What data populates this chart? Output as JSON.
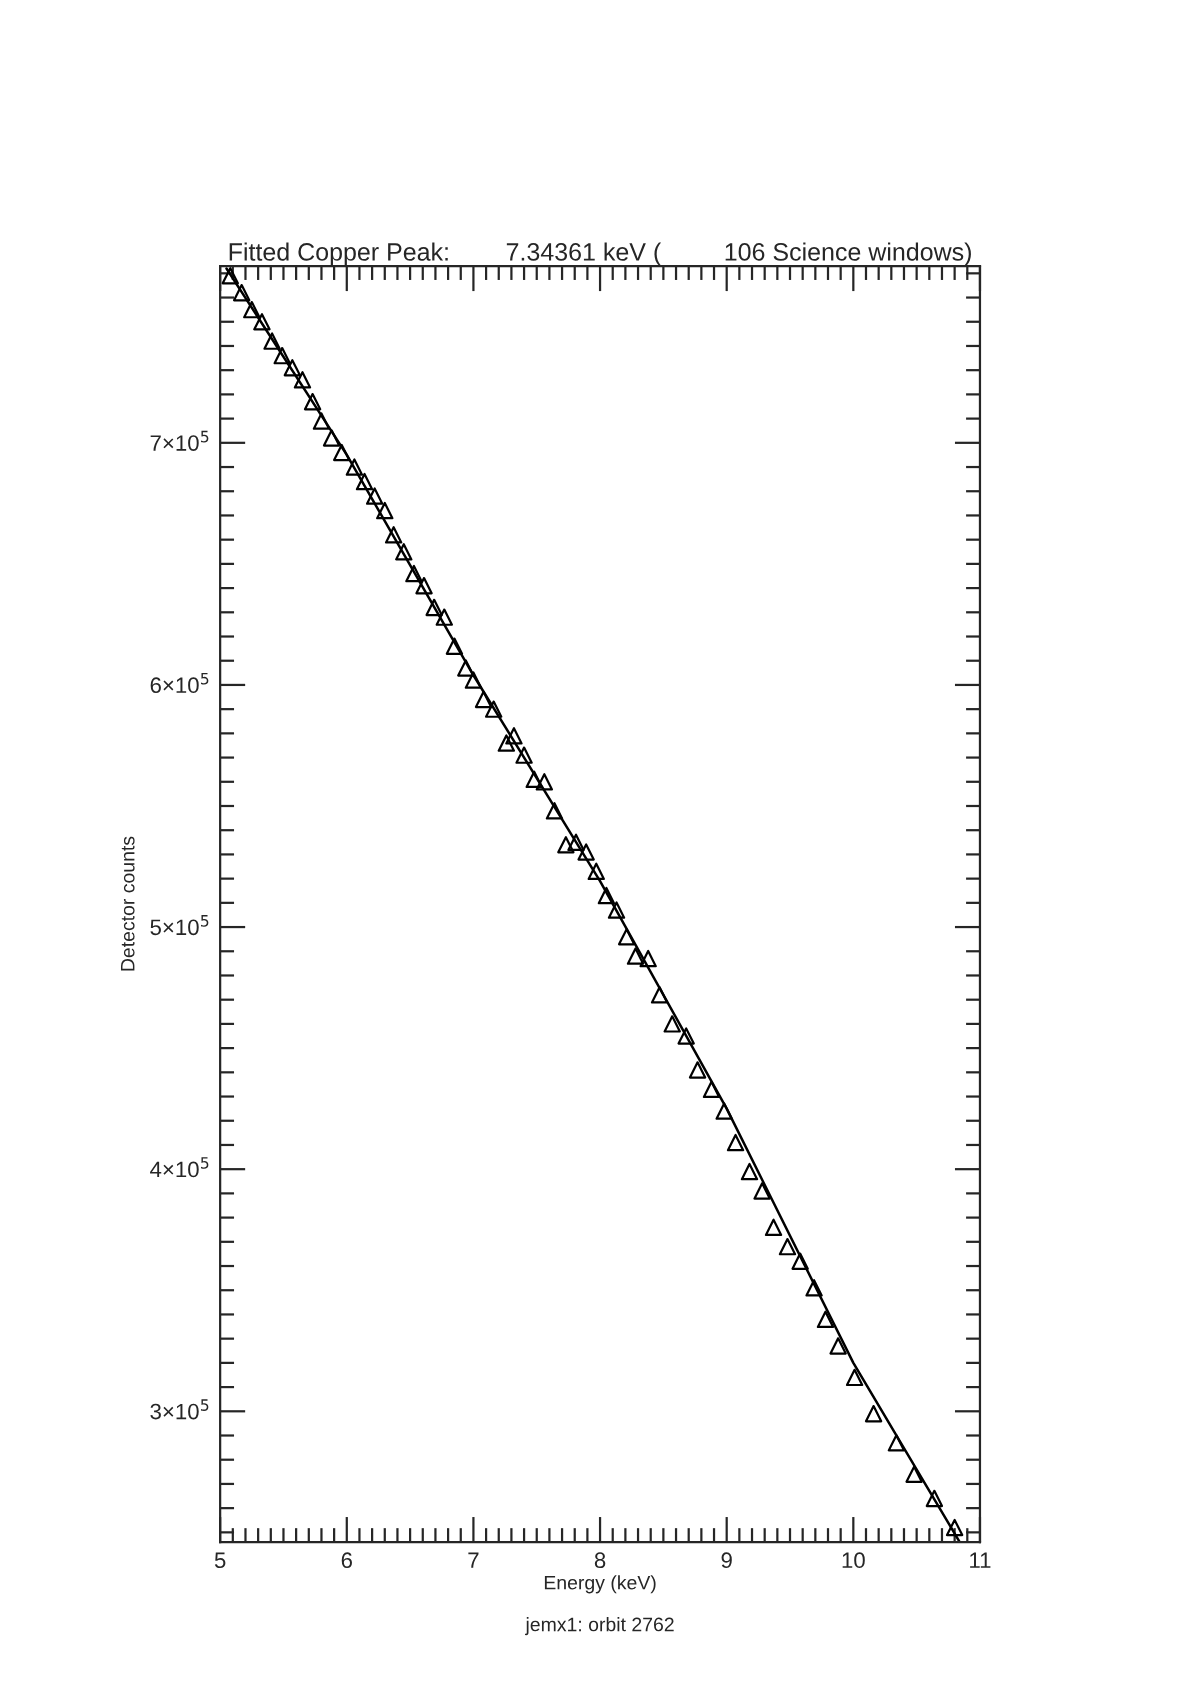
{
  "chart_data": {
    "type": "scatter",
    "title": "Fitted Copper Peak:        7.34361 keV (         106 Science windows)",
    "xlabel": "Energy (keV)",
    "ylabel": "Detector counts",
    "annotations": [
      "jemx1: orbit 2762"
    ],
    "xlim": [
      5,
      11
    ],
    "xticks": [
      5,
      6,
      7,
      8,
      9,
      10,
      11
    ],
    "ylim": [
      246000,
      773000
    ],
    "yticks": [
      {
        "value": 300000,
        "label": "3×10$^{5}$"
      },
      {
        "value": 400000,
        "label": "4×10$^{5}$"
      },
      {
        "value": 500000,
        "label": "5×10$^{5}$"
      },
      {
        "value": 600000,
        "label": "6×10$^{5}$"
      },
      {
        "value": 700000,
        "label": "7×10$^{5}$"
      }
    ],
    "grid": false,
    "series": [
      {
        "color": "#000000",
        "marker": "triangle",
        "x": [
          5.08,
          5.17,
          5.25,
          5.33,
          5.41,
          5.49,
          5.57,
          5.65,
          5.73,
          5.8,
          5.88,
          5.96,
          6.06,
          6.14,
          6.22,
          6.3,
          6.37,
          6.45,
          6.53,
          6.61,
          6.69,
          6.77,
          6.85,
          6.94,
          7.0,
          7.08,
          7.16,
          7.26,
          7.32,
          7.4,
          7.48,
          7.56,
          7.64,
          7.73,
          7.81,
          7.89,
          7.97,
          8.05,
          8.13,
          8.21,
          8.28,
          8.38,
          8.47,
          8.57,
          8.68,
          8.77,
          8.88,
          8.98,
          9.07,
          9.18,
          9.28,
          9.37,
          9.48,
          9.58,
          9.69,
          9.78,
          9.88,
          10.01,
          10.16,
          10.34,
          10.48,
          10.64,
          10.8
        ],
        "values": [
          769000,
          762000,
          755000,
          750000,
          742000,
          736000,
          731000,
          726000,
          717000,
          709000,
          702000,
          696000,
          690000,
          684000,
          678000,
          672000,
          662000,
          655000,
          646000,
          641000,
          632000,
          628000,
          616000,
          607000,
          602000,
          594000,
          590000,
          576000,
          579000,
          571000,
          561000,
          560000,
          548000,
          534000,
          535000,
          531000,
          523000,
          513000,
          507000,
          496000,
          488000,
          487000,
          472000,
          460000,
          455000,
          441000,
          433000,
          424000,
          411000,
          399000,
          391000,
          376000,
          368000,
          362000,
          351000,
          338000,
          327000,
          314000,
          299000,
          287000,
          274000,
          264000,
          252000
        ]
      },
      {
        "type": "line",
        "color": "#000000",
        "marker": "none",
        "line_style": "solid",
        "x": [
          5.05,
          6,
          7,
          8,
          9,
          10,
          10.84
        ],
        "values": [
          772000,
          695000,
          604000,
          519000,
          425000,
          320000,
          246000
        ]
      }
    ]
  }
}
